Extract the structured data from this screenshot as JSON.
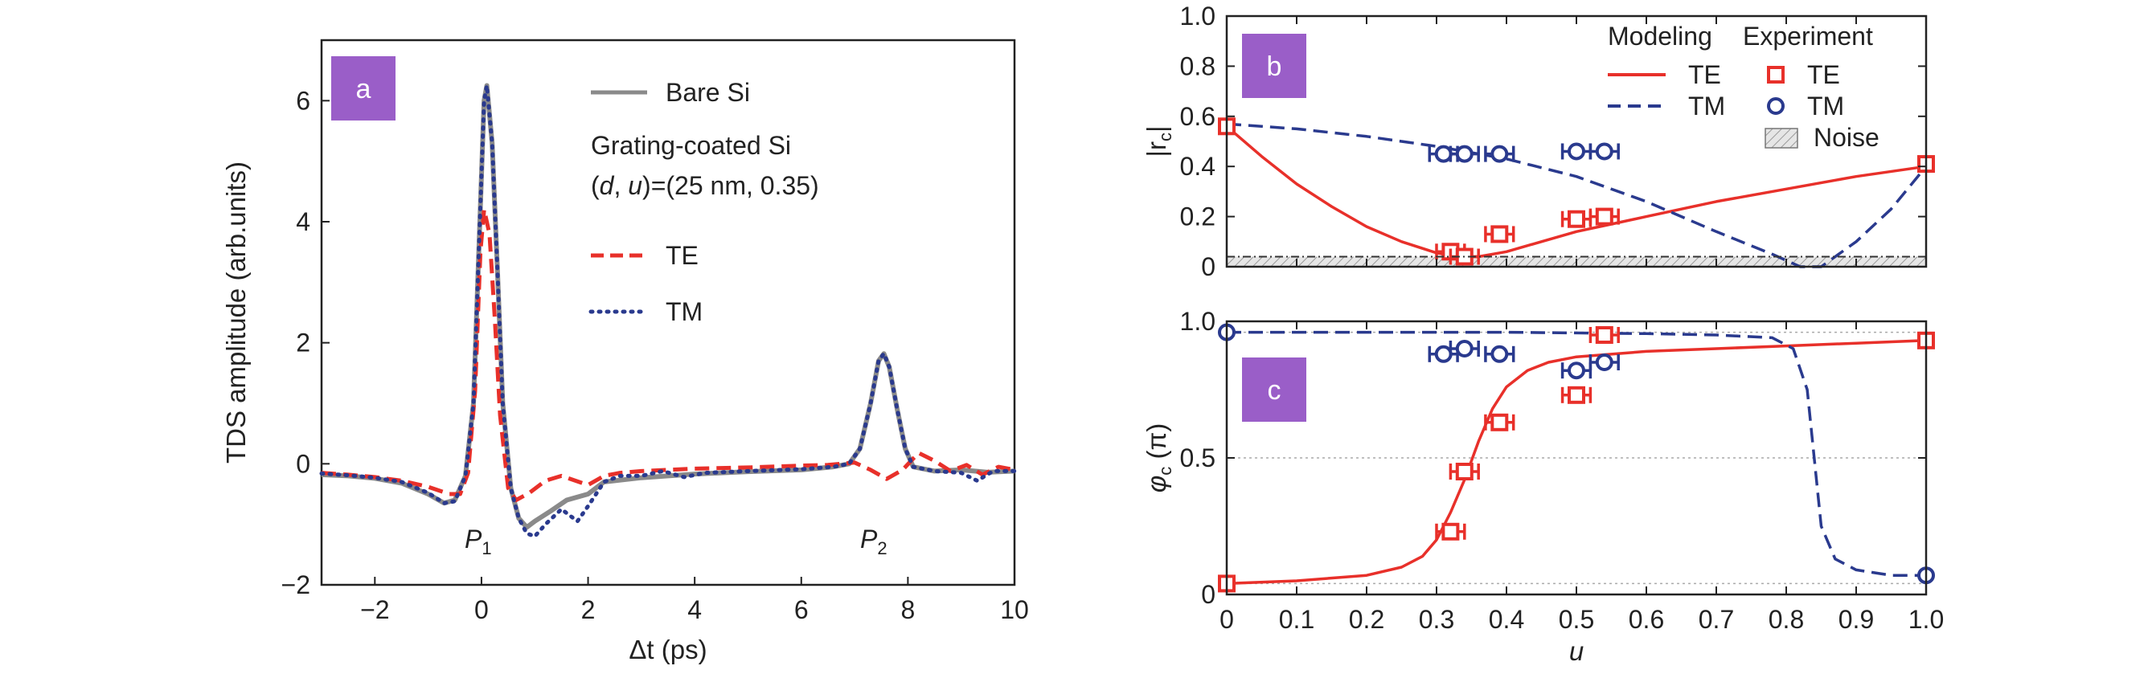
{
  "chart_data": [
    {
      "panel": "a",
      "type": "line",
      "xlabel_var": "Δt",
      "xlabel_unit": " (ps)",
      "ylabel": "TDS amplitude (arb.units)",
      "xlim": [
        -3,
        10
      ],
      "ylim": [
        -2,
        7
      ],
      "xticks": [
        -2,
        0,
        2,
        4,
        6,
        8,
        10
      ],
      "xtick_labels": [
        "−2",
        "0",
        "2",
        "4",
        "6",
        "8",
        "10"
      ],
      "yticks": [
        -2,
        0,
        2,
        4,
        6
      ],
      "ytick_labels": [
        "−2",
        "0",
        "2",
        "4",
        "6"
      ],
      "legend": {
        "bare": "Bare Si",
        "coated_line1": "Grating-coated Si",
        "coated_line2": "(d, u)=(25 nm, 0.35)",
        "te": "TE",
        "tm": "TM"
      },
      "annotations": {
        "p1_main": "P",
        "p1_sub": "1",
        "p2_main": "P",
        "p2_sub": "2"
      },
      "series": [
        {
          "name": "Bare Si",
          "color": "#8a8a8a",
          "style": "solid",
          "points": [
            [
              -3,
              -0.18
            ],
            [
              -2.5,
              -0.2
            ],
            [
              -2,
              -0.24
            ],
            [
              -1.5,
              -0.32
            ],
            [
              -1,
              -0.5
            ],
            [
              -0.7,
              -0.65
            ],
            [
              -0.5,
              -0.6
            ],
            [
              -0.3,
              -0.2
            ],
            [
              -0.15,
              1.0
            ],
            [
              -0.05,
              3.5
            ],
            [
              0.05,
              6.0
            ],
            [
              0.1,
              6.25
            ],
            [
              0.2,
              5.3
            ],
            [
              0.3,
              3.2
            ],
            [
              0.4,
              1.0
            ],
            [
              0.55,
              -0.4
            ],
            [
              0.7,
              -0.9
            ],
            [
              0.85,
              -1.05
            ],
            [
              1.0,
              -0.95
            ],
            [
              1.3,
              -0.78
            ],
            [
              1.6,
              -0.6
            ],
            [
              2.0,
              -0.5
            ],
            [
              2.3,
              -0.3
            ],
            [
              2.6,
              -0.27
            ],
            [
              3.0,
              -0.23
            ],
            [
              3.5,
              -0.2
            ],
            [
              4.0,
              -0.17
            ],
            [
              5.0,
              -0.13
            ],
            [
              6.0,
              -0.1
            ],
            [
              6.6,
              -0.05
            ],
            [
              6.9,
              0.0
            ],
            [
              7.1,
              0.25
            ],
            [
              7.3,
              1.0
            ],
            [
              7.45,
              1.7
            ],
            [
              7.55,
              1.82
            ],
            [
              7.65,
              1.6
            ],
            [
              7.8,
              0.9
            ],
            [
              7.95,
              0.25
            ],
            [
              8.1,
              -0.05
            ],
            [
              8.5,
              -0.12
            ],
            [
              9.0,
              -0.1
            ],
            [
              9.5,
              -0.14
            ],
            [
              10.0,
              -0.12
            ]
          ]
        },
        {
          "name": "TE",
          "color": "#e8302a",
          "style": "dashed",
          "points": [
            [
              -3,
              -0.15
            ],
            [
              -2.5,
              -0.18
            ],
            [
              -2,
              -0.22
            ],
            [
              -1.5,
              -0.28
            ],
            [
              -1,
              -0.38
            ],
            [
              -0.6,
              -0.5
            ],
            [
              -0.4,
              -0.5
            ],
            [
              -0.25,
              -0.15
            ],
            [
              -0.12,
              1.2
            ],
            [
              -0.02,
              3.5
            ],
            [
              0.05,
              4.2
            ],
            [
              0.15,
              3.8
            ],
            [
              0.25,
              2.4
            ],
            [
              0.35,
              0.8
            ],
            [
              0.5,
              -0.4
            ],
            [
              0.65,
              -0.6
            ],
            [
              0.9,
              -0.48
            ],
            [
              1.2,
              -0.28
            ],
            [
              1.5,
              -0.2
            ],
            [
              2.0,
              -0.35
            ],
            [
              2.3,
              -0.2
            ],
            [
              2.6,
              -0.15
            ],
            [
              3.0,
              -0.12
            ],
            [
              4.0,
              -0.08
            ],
            [
              5.0,
              -0.06
            ],
            [
              6.0,
              -0.03
            ],
            [
              6.5,
              -0.02
            ],
            [
              7.0,
              0.02
            ],
            [
              7.3,
              -0.1
            ],
            [
              7.6,
              -0.25
            ],
            [
              7.9,
              -0.1
            ],
            [
              8.2,
              0.18
            ],
            [
              8.5,
              0.05
            ],
            [
              8.8,
              -0.12
            ],
            [
              9.1,
              -0.02
            ],
            [
              9.4,
              -0.18
            ],
            [
              9.7,
              -0.05
            ],
            [
              10.0,
              -0.1
            ]
          ]
        },
        {
          "name": "TM",
          "color": "#2a3a8e",
          "style": "dotted",
          "points": [
            [
              -3,
              -0.16
            ],
            [
              -2.5,
              -0.19
            ],
            [
              -2,
              -0.23
            ],
            [
              -1.5,
              -0.3
            ],
            [
              -1,
              -0.48
            ],
            [
              -0.7,
              -0.65
            ],
            [
              -0.5,
              -0.62
            ],
            [
              -0.3,
              -0.2
            ],
            [
              -0.15,
              1.0
            ],
            [
              -0.05,
              3.5
            ],
            [
              0.05,
              6.0
            ],
            [
              0.1,
              6.25
            ],
            [
              0.2,
              5.3
            ],
            [
              0.3,
              3.2
            ],
            [
              0.4,
              1.0
            ],
            [
              0.55,
              -0.4
            ],
            [
              0.7,
              -0.9
            ],
            [
              0.85,
              -1.15
            ],
            [
              1.0,
              -1.2
            ],
            [
              1.2,
              -1.0
            ],
            [
              1.5,
              -0.75
            ],
            [
              1.8,
              -0.95
            ],
            [
              2.0,
              -0.7
            ],
            [
              2.3,
              -0.3
            ],
            [
              2.6,
              -0.2
            ],
            [
              3.0,
              -0.2
            ],
            [
              3.4,
              -0.12
            ],
            [
              3.8,
              -0.22
            ],
            [
              4.2,
              -0.15
            ],
            [
              5.0,
              -0.12
            ],
            [
              6.0,
              -0.09
            ],
            [
              6.6,
              -0.05
            ],
            [
              6.9,
              0.0
            ],
            [
              7.1,
              0.25
            ],
            [
              7.3,
              1.0
            ],
            [
              7.45,
              1.7
            ],
            [
              7.55,
              1.82
            ],
            [
              7.65,
              1.6
            ],
            [
              7.8,
              0.9
            ],
            [
              7.95,
              0.25
            ],
            [
              8.1,
              -0.05
            ],
            [
              8.5,
              -0.12
            ],
            [
              9.0,
              -0.15
            ],
            [
              9.3,
              -0.28
            ],
            [
              9.6,
              -0.12
            ],
            [
              10.0,
              -0.12
            ]
          ]
        }
      ]
    },
    {
      "panel": "b",
      "type": "line",
      "xlabel": "",
      "ylabel_main": "|r",
      "ylabel_sub": "c",
      "ylabel_end": "|",
      "xlim": [
        0,
        1.0
      ],
      "ylim": [
        0,
        1.0
      ],
      "yticks": [
        0,
        0.2,
        0.4,
        0.6,
        0.8,
        1.0
      ],
      "ytick_labels": [
        "0",
        "0.2",
        "0.4",
        "0.6",
        "0.8",
        "1.0"
      ],
      "xticks": [
        0,
        0.1,
        0.2,
        0.3,
        0.4,
        0.5,
        0.6,
        0.7,
        0.8,
        0.9,
        1.0
      ],
      "noise_level": 0.04,
      "legend": {
        "header_model": "Modeling",
        "header_exp": "Experiment",
        "te_model": "TE",
        "tm_model": "TM",
        "te_exp": "TE",
        "tm_exp": "TM",
        "noise": "Noise"
      },
      "series": [
        {
          "name": "TE",
          "color": "#e8302a",
          "style": "solid",
          "points": [
            [
              0,
              0.56
            ],
            [
              0.05,
              0.44
            ],
            [
              0.1,
              0.33
            ],
            [
              0.15,
              0.24
            ],
            [
              0.2,
              0.16
            ],
            [
              0.25,
              0.1
            ],
            [
              0.3,
              0.055
            ],
            [
              0.33,
              0.04
            ],
            [
              0.36,
              0.04
            ],
            [
              0.4,
              0.06
            ],
            [
              0.45,
              0.1
            ],
            [
              0.5,
              0.14
            ],
            [
              0.55,
              0.17
            ],
            [
              0.6,
              0.2
            ],
            [
              0.7,
              0.26
            ],
            [
              0.8,
              0.31
            ],
            [
              0.9,
              0.36
            ],
            [
              1.0,
              0.4
            ]
          ]
        },
        {
          "name": "TM",
          "color": "#2a3a8e",
          "style": "dashed",
          "points": [
            [
              0,
              0.57
            ],
            [
              0.1,
              0.55
            ],
            [
              0.2,
              0.52
            ],
            [
              0.3,
              0.48
            ],
            [
              0.4,
              0.43
            ],
            [
              0.5,
              0.36
            ],
            [
              0.6,
              0.26
            ],
            [
              0.7,
              0.14
            ],
            [
              0.78,
              0.05
            ],
            [
              0.82,
              0.0
            ],
            [
              0.85,
              0.0
            ],
            [
              0.9,
              0.1
            ],
            [
              0.95,
              0.23
            ],
            [
              1.0,
              0.4
            ]
          ]
        },
        {
          "name": "TE",
          "kind": "markers",
          "marker": "square",
          "color": "#e8302a",
          "points": [
            [
              0,
              0.56,
              0
            ],
            [
              0.32,
              0.06,
              0.02
            ],
            [
              0.34,
              0.04,
              0.02
            ],
            [
              0.39,
              0.13,
              0.02
            ],
            [
              0.5,
              0.19,
              0.02
            ],
            [
              0.54,
              0.2,
              0.02
            ],
            [
              1.0,
              0.41,
              0
            ]
          ]
        },
        {
          "name": "TM",
          "kind": "markers",
          "marker": "circle",
          "color": "#2a3a8e",
          "points": [
            [
              0.31,
              0.45,
              0.02
            ],
            [
              0.34,
              0.45,
              0.02
            ],
            [
              0.39,
              0.45,
              0.02
            ],
            [
              0.5,
              0.46,
              0.02
            ],
            [
              0.54,
              0.46,
              0.02
            ]
          ]
        }
      ]
    },
    {
      "panel": "c",
      "type": "line",
      "xlabel": "u",
      "ylabel_main": "φ",
      "ylabel_sub": "c",
      "ylabel_end": " (π)",
      "xlim": [
        0,
        1.0
      ],
      "ylim": [
        0,
        1.0
      ],
      "yticks": [
        0,
        0.5,
        1.0
      ],
      "ytick_labels": [
        "0",
        "0.5",
        "1.0"
      ],
      "xticks": [
        0,
        0.1,
        0.2,
        0.3,
        0.4,
        0.5,
        0.6,
        0.7,
        0.8,
        0.9,
        1.0
      ],
      "xtick_labels": [
        "0",
        "0.1",
        "0.2",
        "0.3",
        "0.4",
        "0.5",
        "0.6",
        "0.7",
        "0.8",
        "0.9",
        "1.0"
      ],
      "ref_lines": [
        0.04,
        0.5,
        0.96
      ],
      "series": [
        {
          "name": "TE",
          "color": "#e8302a",
          "style": "solid",
          "points": [
            [
              0,
              0.04
            ],
            [
              0.1,
              0.05
            ],
            [
              0.2,
              0.07
            ],
            [
              0.25,
              0.1
            ],
            [
              0.28,
              0.14
            ],
            [
              0.3,
              0.2
            ],
            [
              0.32,
              0.3
            ],
            [
              0.34,
              0.42
            ],
            [
              0.36,
              0.56
            ],
            [
              0.38,
              0.68
            ],
            [
              0.4,
              0.76
            ],
            [
              0.43,
              0.82
            ],
            [
              0.46,
              0.85
            ],
            [
              0.5,
              0.87
            ],
            [
              0.6,
              0.89
            ],
            [
              0.7,
              0.9
            ],
            [
              0.8,
              0.91
            ],
            [
              0.9,
              0.92
            ],
            [
              1.0,
              0.93
            ]
          ]
        },
        {
          "name": "TM",
          "color": "#2a3a8e",
          "style": "dashed",
          "points": [
            [
              0,
              0.96
            ],
            [
              0.2,
              0.96
            ],
            [
              0.4,
              0.96
            ],
            [
              0.6,
              0.955
            ],
            [
              0.7,
              0.95
            ],
            [
              0.78,
              0.94
            ],
            [
              0.81,
              0.9
            ],
            [
              0.83,
              0.75
            ],
            [
              0.84,
              0.5
            ],
            [
              0.85,
              0.25
            ],
            [
              0.87,
              0.13
            ],
            [
              0.9,
              0.09
            ],
            [
              0.95,
              0.07
            ],
            [
              1.0,
              0.07
            ]
          ]
        },
        {
          "name": "TE",
          "kind": "markers",
          "marker": "square",
          "color": "#e8302a",
          "points": [
            [
              0,
              0.04,
              0
            ],
            [
              0.32,
              0.23,
              0.02
            ],
            [
              0.34,
              0.45,
              0.02
            ],
            [
              0.39,
              0.63,
              0.02
            ],
            [
              0.5,
              0.73,
              0.02
            ],
            [
              0.54,
              0.95,
              0.02
            ],
            [
              1.0,
              0.93,
              0
            ]
          ]
        },
        {
          "name": "TM",
          "kind": "markers",
          "marker": "circle",
          "color": "#2a3a8e",
          "points": [
            [
              0,
              0.96,
              0
            ],
            [
              0.31,
              0.88,
              0.02
            ],
            [
              0.34,
              0.9,
              0.02
            ],
            [
              0.39,
              0.88,
              0.02
            ],
            [
              0.5,
              0.82,
              0.02
            ],
            [
              0.54,
              0.85,
              0.02
            ],
            [
              1.0,
              0.07,
              0
            ]
          ]
        }
      ]
    }
  ],
  "badges": {
    "a": {
      "label": "a",
      "color": "#9a5ec8"
    },
    "b": {
      "label": "b",
      "color": "#9a5ec8"
    },
    "c": {
      "label": "c",
      "color": "#9a5ec8"
    }
  }
}
